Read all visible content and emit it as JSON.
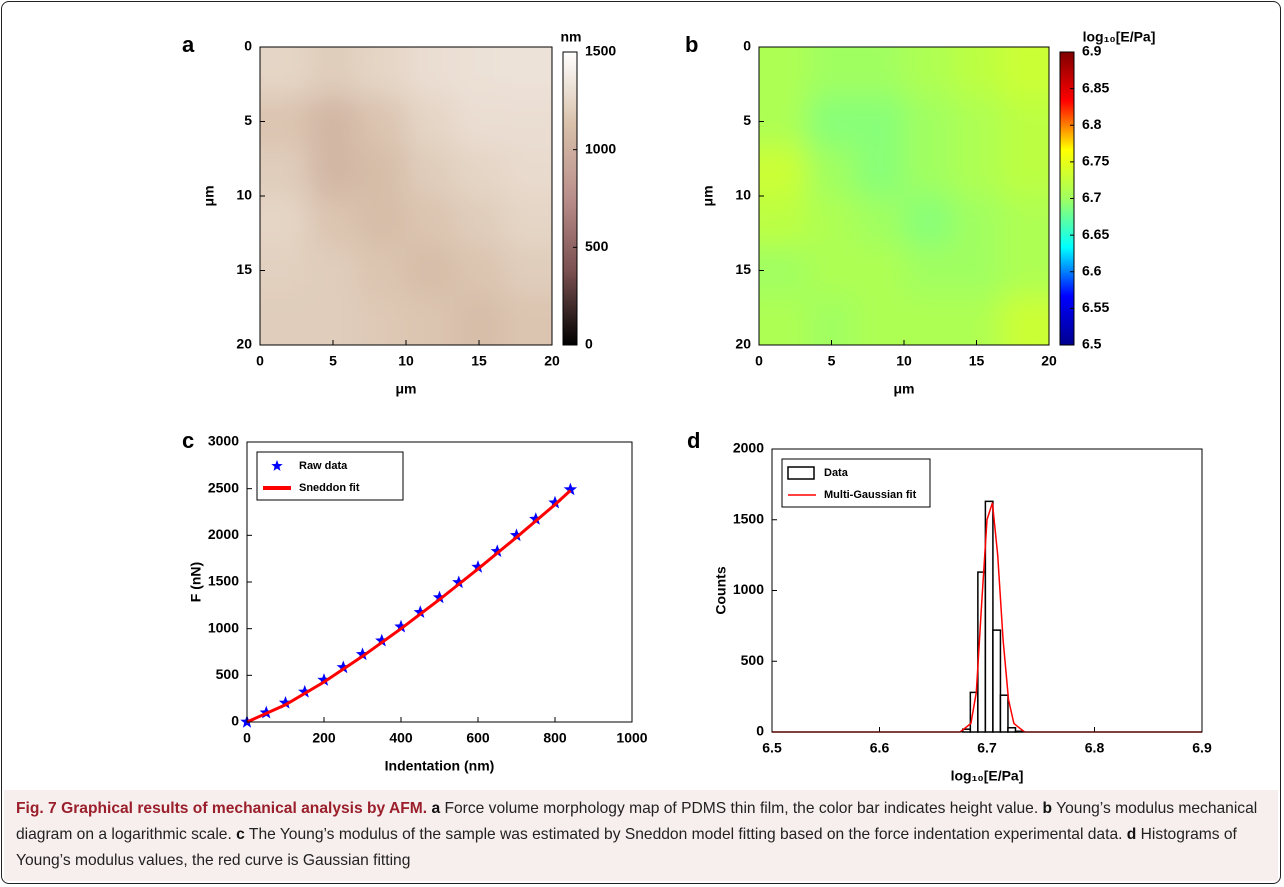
{
  "chart_data": [
    {
      "type": "heatmap",
      "panel": "a",
      "xlabel": "μm",
      "ylabel": "μm",
      "xlim": [
        0,
        20
      ],
      "xticks": [
        0,
        5,
        10,
        15,
        20
      ],
      "ylim": [
        20,
        0
      ],
      "yticks": [
        0,
        5,
        10,
        15,
        20
      ],
      "values": [
        [
          1250,
          1200,
          1250,
          1300,
          1320,
          1330
        ],
        [
          1150,
          1050,
          1150,
          1250,
          1300,
          1300
        ],
        [
          1200,
          1050,
          1100,
          1200,
          1250,
          1280
        ],
        [
          1250,
          1150,
          1100,
          1150,
          1200,
          1250
        ],
        [
          1220,
          1200,
          1150,
          1100,
          1150,
          1200
        ],
        [
          1200,
          1200,
          1180,
          1150,
          1100,
          1150
        ]
      ],
      "colorbar": {
        "label": "nm",
        "lim": [
          0,
          1500
        ],
        "ticks": [
          0,
          500,
          1000,
          1500
        ],
        "colors": [
          "#000000",
          "#7a5050",
          "#b98e8a",
          "#d8c0aa",
          "#ffffff"
        ]
      }
    },
    {
      "type": "heatmap",
      "panel": "b",
      "xlabel": "μm",
      "ylabel": "μm",
      "xlim": [
        0,
        20
      ],
      "xticks": [
        0,
        5,
        10,
        15,
        20
      ],
      "ylim": [
        20,
        0
      ],
      "yticks": [
        0,
        5,
        10,
        15,
        20
      ],
      "values": [
        [
          6.71,
          6.7,
          6.7,
          6.71,
          6.72,
          6.73
        ],
        [
          6.71,
          6.69,
          6.69,
          6.7,
          6.71,
          6.72
        ],
        [
          6.73,
          6.7,
          6.69,
          6.7,
          6.71,
          6.72
        ],
        [
          6.72,
          6.71,
          6.7,
          6.69,
          6.7,
          6.71
        ],
        [
          6.7,
          6.71,
          6.71,
          6.7,
          6.7,
          6.71
        ],
        [
          6.71,
          6.7,
          6.71,
          6.71,
          6.71,
          6.73
        ]
      ],
      "colorbar": {
        "label": "log₁₀[E/Pa]",
        "lim": [
          6.5,
          6.9
        ],
        "ticks": [
          6.5,
          6.55,
          6.6,
          6.65,
          6.7,
          6.75,
          6.8,
          6.85,
          6.9
        ],
        "colors": [
          "#00008f",
          "#0000ff",
          "#00ffff",
          "#a0ff60",
          "#ffff00",
          "#ff0000",
          "#800000"
        ]
      }
    },
    {
      "type": "line",
      "panel": "c",
      "xlabel": "Indentation (nm)",
      "ylabel": "F (nN)",
      "xlim": [
        0,
        1000
      ],
      "xticks": [
        0,
        200,
        400,
        600,
        800,
        1000
      ],
      "ylim": [
        0,
        3000
      ],
      "yticks": [
        0,
        500,
        1000,
        1500,
        2000,
        2500,
        3000
      ],
      "legend": "upper left",
      "series": [
        {
          "name": "Raw data",
          "marker": "star",
          "color": "#0000ff",
          "x": [
            0,
            50,
            100,
            150,
            200,
            250,
            300,
            350,
            400,
            450,
            500,
            550,
            600,
            650,
            700,
            750,
            800,
            840
          ],
          "values": [
            0,
            99,
            204,
            322,
            449,
            584,
            724,
            870,
            1020,
            1175,
            1333,
            1495,
            1660,
            1828,
            1999,
            2173,
            2349,
            2490
          ]
        },
        {
          "name": "Sneddon fit",
          "color": "#ff0000",
          "x": [
            0,
            100,
            200,
            300,
            400,
            500,
            600,
            700,
            800,
            840
          ],
          "values": [
            0,
            184,
            429,
            704,
            1000,
            1313,
            1640,
            1979,
            2329,
            2480
          ]
        }
      ]
    },
    {
      "type": "histogram",
      "panel": "d",
      "xlabel": "log₁₀[E/Pa]",
      "ylabel": "Counts",
      "xlim": [
        6.5,
        6.9
      ],
      "xticks": [
        6.5,
        6.6,
        6.7,
        6.8,
        6.9
      ],
      "ylim": [
        0,
        2000
      ],
      "yticks": [
        0,
        500,
        1000,
        1500,
        2000
      ],
      "legend": "upper left",
      "series": [
        {
          "name": "Data",
          "color": "#000000",
          "bins": [
            6.6775,
            6.6845,
            6.6915,
            6.6985,
            6.7055,
            6.7125,
            6.7195,
            6.7265,
            6.7335
          ],
          "values": [
            20,
            280,
            1130,
            1630,
            720,
            260,
            30,
            5
          ]
        },
        {
          "name": "Multi-Gaussian fit",
          "color": "#ff0000",
          "x": [
            6.5,
            6.675,
            6.685,
            6.69,
            6.695,
            6.7,
            6.705,
            6.71,
            6.715,
            6.72,
            6.725,
            6.735,
            6.9
          ],
          "values": [
            0,
            0,
            60,
            280,
            900,
            1500,
            1620,
            1250,
            650,
            230,
            60,
            0,
            0
          ]
        }
      ]
    }
  ],
  "caption": {
    "label": "Fig. 7",
    "title": "Graphical results of mechanical analysis by AFM.",
    "parts": [
      {
        "letter": "a",
        "text": "Force volume morphology map of PDMS thin film, the color bar indicates height value."
      },
      {
        "letter": "b",
        "text": "Young’s modulus mechanical diagram on a logarithmic scale."
      },
      {
        "letter": "c",
        "text": "The Young’s modulus of the sample was estimated by Sneddon model fitting based on the force indentation experimental data."
      },
      {
        "letter": "d",
        "text": "Histograms of Young’s modulus values, the red curve is Gaussian fitting"
      }
    ]
  }
}
